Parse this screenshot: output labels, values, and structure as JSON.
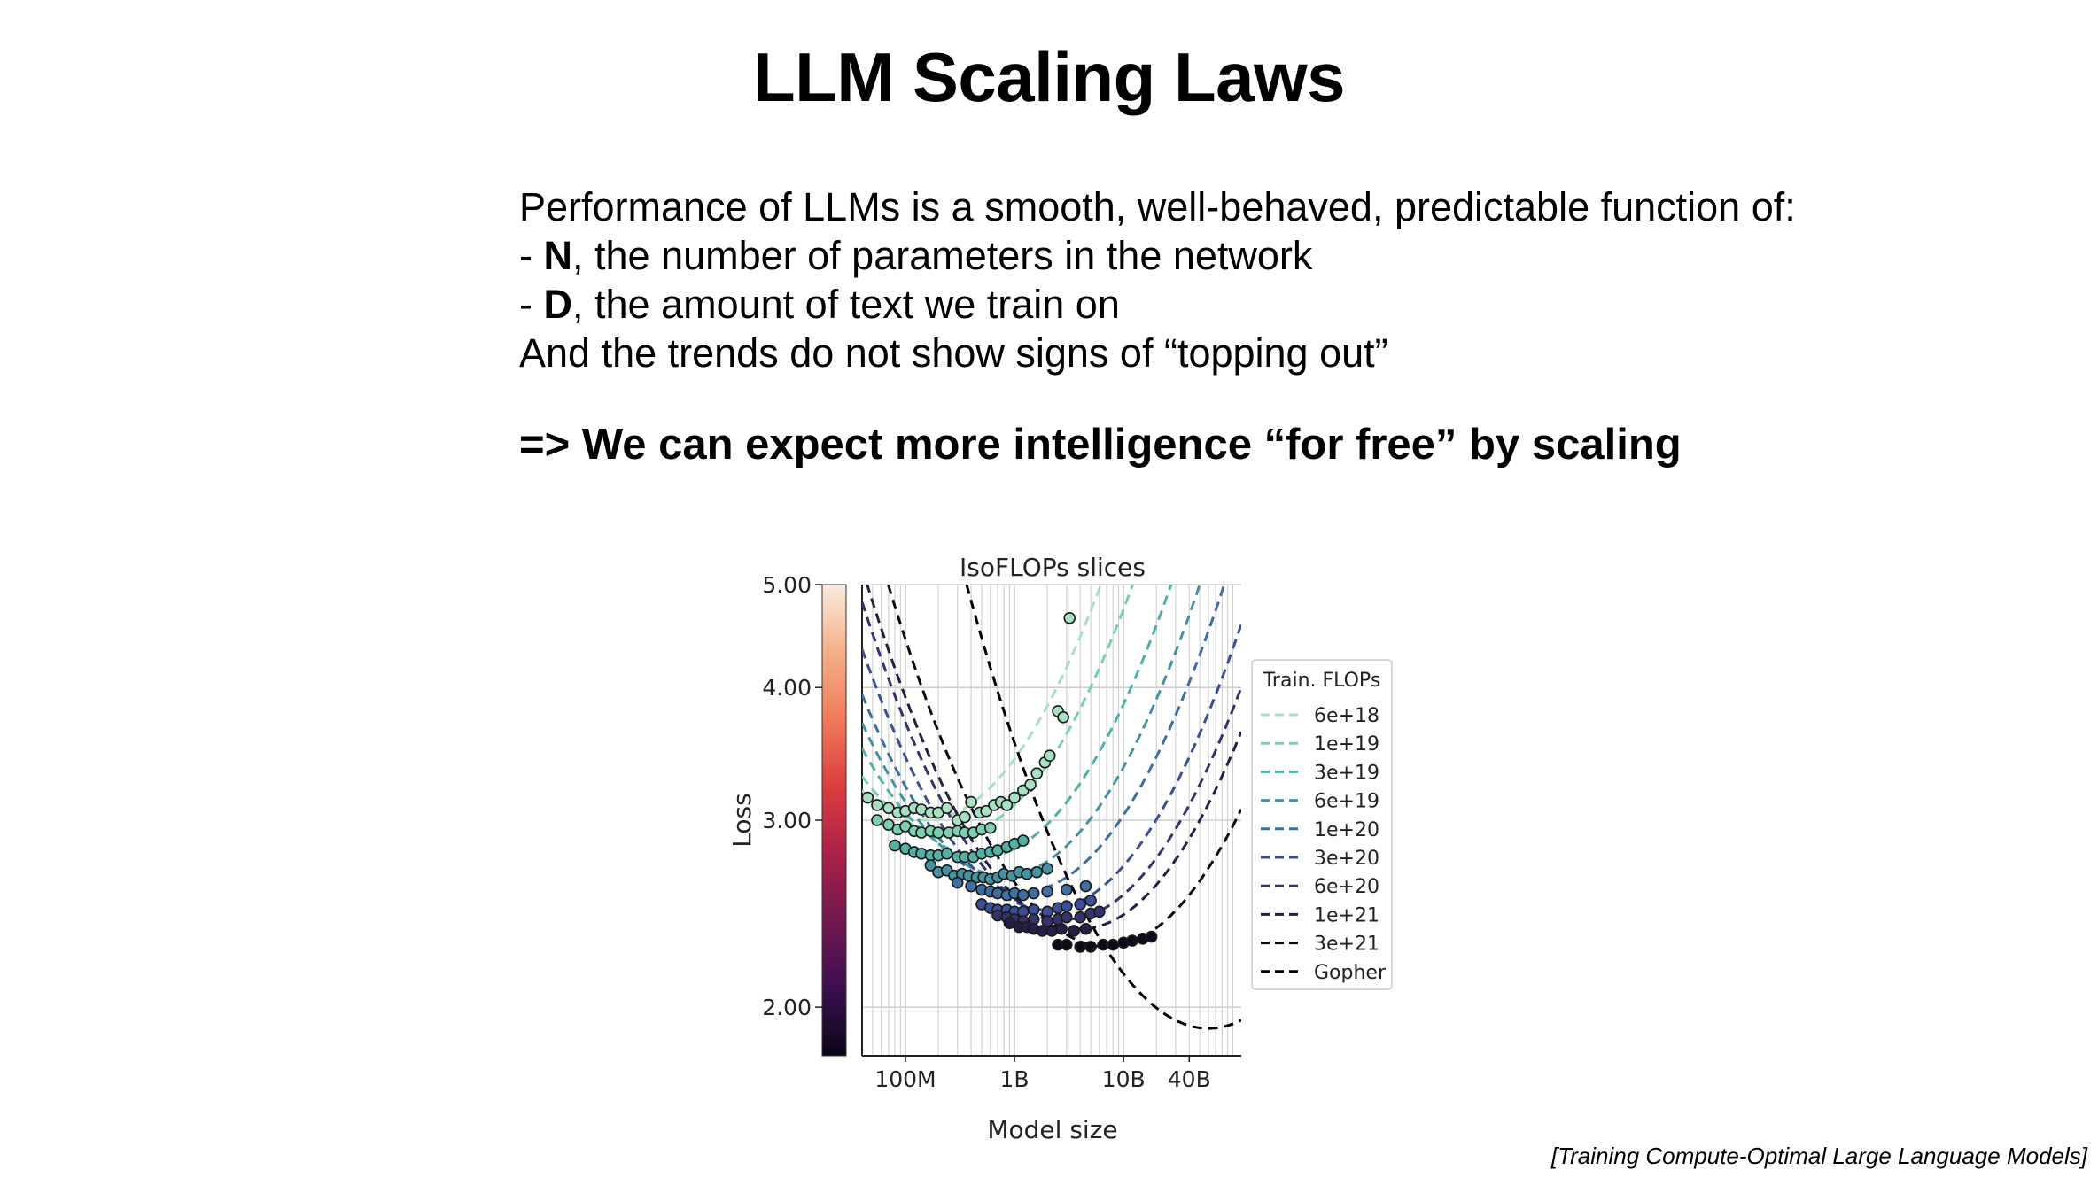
{
  "slide": {
    "title": "LLM Scaling Laws",
    "lines": [
      {
        "prefix": "",
        "bold": "",
        "rest": "Performance of LLMs is a smooth, well-behaved, predictable function of:"
      },
      {
        "prefix": "- ",
        "bold": "N",
        "rest": ", the number of parameters in the network"
      },
      {
        "prefix": "- ",
        "bold": "D",
        "rest": ", the amount of text we train on"
      },
      {
        "prefix": "",
        "bold": "",
        "rest": "And the trends do not show signs of “topping out”"
      }
    ],
    "conclusion": "=> We can expect more intelligence “for free” by scaling",
    "citation": "[Training Compute-Optimal Large Language Models]"
  },
  "chart_data": {
    "type": "line",
    "title": "IsoFLOPs slices",
    "xlabel": "Model size",
    "ylabel": "Loss",
    "x_scale": "log",
    "y_scale": "log",
    "xlim_params": [
      40000000,
      120000000000
    ],
    "ylim": [
      1.8,
      5.0
    ],
    "x_ticks": [
      {
        "label": "100M",
        "value": 100000000
      },
      {
        "label": "1B",
        "value": 1000000000
      },
      {
        "label": "10B",
        "value": 10000000000
      },
      {
        "label": "40B",
        "value": 40000000000
      }
    ],
    "y_ticks": [
      {
        "label": "5.00",
        "value": 5.0
      },
      {
        "label": "4.00",
        "value": 4.0
      },
      {
        "label": "3.00",
        "value": 3.0
      },
      {
        "label": "2.00",
        "value": 2.0
      }
    ],
    "grid": true,
    "colorbar": {
      "colors": [
        "#0b0617",
        "#3b0f4f",
        "#71174f",
        "#ab2148",
        "#dd3c3f",
        "#f27a5a",
        "#f5b088",
        "#faebdd"
      ]
    },
    "legend": {
      "title": "Train. FLOPs",
      "position": "right"
    },
    "series": [
      {
        "name": "6e+18",
        "color": "#a8e0c4",
        "vertex_params": 150000000,
        "min_loss": 3.0,
        "curvature": 0.085,
        "points": [
          [
            45000000,
            3.15
          ],
          [
            55000000,
            3.1
          ],
          [
            70000000,
            3.08
          ],
          [
            85000000,
            3.05
          ],
          [
            100000000,
            3.06
          ],
          [
            120000000,
            3.08
          ],
          [
            140000000,
            3.07
          ],
          [
            170000000,
            3.05
          ],
          [
            200000000,
            3.05
          ],
          [
            240000000,
            3.08
          ],
          [
            300000000,
            3.0
          ],
          [
            350000000,
            3.02
          ],
          [
            400000000,
            3.12
          ],
          [
            480000000,
            3.05
          ],
          [
            550000000,
            3.06
          ],
          [
            650000000,
            3.1
          ],
          [
            750000000,
            3.12
          ],
          [
            850000000,
            3.1
          ],
          [
            1000000000,
            3.15
          ],
          [
            1200000000,
            3.2
          ],
          [
            1400000000,
            3.24
          ],
          [
            1600000000,
            3.32
          ],
          [
            1900000000,
            3.4
          ],
          [
            2100000000,
            3.45
          ],
          [
            2500000000,
            3.8
          ],
          [
            2800000000,
            3.75
          ],
          [
            3200000000,
            4.65
          ]
        ]
      },
      {
        "name": "1e+19",
        "color": "#7ccfb0",
        "vertex_params": 260000000,
        "min_loss": 2.9,
        "curvature": 0.085,
        "points": [
          [
            55000000,
            3.0
          ],
          [
            70000000,
            2.97
          ],
          [
            85000000,
            2.94
          ],
          [
            100000000,
            2.96
          ],
          [
            120000000,
            2.93
          ],
          [
            140000000,
            2.92
          ],
          [
            170000000,
            2.93
          ],
          [
            200000000,
            2.92
          ],
          [
            250000000,
            2.92
          ],
          [
            300000000,
            2.93
          ],
          [
            350000000,
            2.92
          ],
          [
            420000000,
            2.92
          ],
          [
            500000000,
            2.94
          ],
          [
            600000000,
            2.95
          ]
        ]
      },
      {
        "name": "3e+19",
        "color": "#52b1a4",
        "vertex_params": 500000000,
        "min_loss": 2.77,
        "curvature": 0.085,
        "points": [
          [
            80000000,
            2.84
          ],
          [
            100000000,
            2.82
          ],
          [
            120000000,
            2.8
          ],
          [
            140000000,
            2.79
          ],
          [
            170000000,
            2.78
          ],
          [
            200000000,
            2.78
          ],
          [
            240000000,
            2.79
          ],
          [
            300000000,
            2.77
          ],
          [
            350000000,
            2.77
          ],
          [
            420000000,
            2.77
          ],
          [
            500000000,
            2.79
          ],
          [
            600000000,
            2.8
          ],
          [
            700000000,
            2.81
          ],
          [
            850000000,
            2.83
          ],
          [
            1000000000,
            2.85
          ],
          [
            1200000000,
            2.87
          ]
        ]
      },
      {
        "name": "6e+19",
        "color": "#4792a0",
        "vertex_params": 800000000,
        "min_loss": 2.66,
        "curvature": 0.085,
        "points": [
          [
            170000000,
            2.72
          ],
          [
            200000000,
            2.68
          ],
          [
            240000000,
            2.69
          ],
          [
            280000000,
            2.66
          ],
          [
            330000000,
            2.67
          ],
          [
            380000000,
            2.66
          ],
          [
            450000000,
            2.65
          ],
          [
            520000000,
            2.65
          ],
          [
            600000000,
            2.64
          ],
          [
            700000000,
            2.65
          ],
          [
            800000000,
            2.67
          ],
          [
            950000000,
            2.66
          ],
          [
            1100000000,
            2.68
          ],
          [
            1300000000,
            2.67
          ],
          [
            1600000000,
            2.68
          ],
          [
            2000000000,
            2.7
          ]
        ]
      },
      {
        "name": "1e+20",
        "color": "#3f6fa0",
        "vertex_params": 1200000000,
        "min_loss": 2.57,
        "curvature": 0.085,
        "points": [
          [
            300000000,
            2.62
          ],
          [
            400000000,
            2.6
          ],
          [
            500000000,
            2.58
          ],
          [
            600000000,
            2.57
          ],
          [
            700000000,
            2.56
          ],
          [
            850000000,
            2.55
          ],
          [
            1000000000,
            2.56
          ],
          [
            1200000000,
            2.55
          ],
          [
            1500000000,
            2.56
          ],
          [
            2000000000,
            2.57
          ],
          [
            3000000000,
            2.58
          ],
          [
            4500000000,
            2.6
          ]
        ]
      },
      {
        "name": "3e+20",
        "color": "#3b4e96",
        "vertex_params": 2000000000,
        "min_loss": 2.47,
        "curvature": 0.085,
        "points": [
          [
            500000000,
            2.5
          ],
          [
            600000000,
            2.48
          ],
          [
            700000000,
            2.47
          ],
          [
            850000000,
            2.47
          ],
          [
            1000000000,
            2.46
          ],
          [
            1200000000,
            2.46
          ],
          [
            1500000000,
            2.47
          ],
          [
            2000000000,
            2.46
          ],
          [
            2500000000,
            2.48
          ],
          [
            3000000000,
            2.49
          ],
          [
            4000000000,
            2.5
          ],
          [
            5000000000,
            2.52
          ]
        ]
      },
      {
        "name": "6e+20",
        "color": "#35336d",
        "vertex_params": 3000000000,
        "min_loss": 2.42,
        "curvature": 0.085,
        "points": [
          [
            700000000,
            2.44
          ],
          [
            850000000,
            2.43
          ],
          [
            1000000000,
            2.42
          ],
          [
            1200000000,
            2.41
          ],
          [
            1500000000,
            2.42
          ],
          [
            2000000000,
            2.41
          ],
          [
            2500000000,
            2.42
          ],
          [
            3000000000,
            2.43
          ],
          [
            4000000000,
            2.43
          ],
          [
            5000000000,
            2.45
          ],
          [
            6000000000,
            2.46
          ]
        ]
      },
      {
        "name": "1e+21",
        "color": "#241f44",
        "vertex_params": 4000000000,
        "min_loss": 2.37,
        "curvature": 0.085,
        "points": [
          [
            900000000,
            2.4
          ],
          [
            1100000000,
            2.38
          ],
          [
            1300000000,
            2.38
          ],
          [
            1500000000,
            2.37
          ],
          [
            1800000000,
            2.36
          ],
          [
            2200000000,
            2.36
          ],
          [
            2700000000,
            2.37
          ],
          [
            3500000000,
            2.36
          ],
          [
            4500000000,
            2.37
          ]
        ]
      },
      {
        "name": "3e+21",
        "color": "#0f0a1a",
        "vertex_params": 7000000000,
        "min_loss": 2.28,
        "curvature": 0.085,
        "points": [
          [
            2500000000,
            2.29
          ],
          [
            3000000000,
            2.29
          ],
          [
            4000000000,
            2.28
          ],
          [
            5000000000,
            2.28
          ],
          [
            6500000000,
            2.29
          ],
          [
            8000000000,
            2.29
          ],
          [
            10000000000,
            2.3
          ],
          [
            12000000000,
            2.31
          ],
          [
            15000000000,
            2.32
          ],
          [
            18000000000,
            2.33
          ]
        ]
      },
      {
        "name": "Gopher",
        "color": "#000000",
        "vertex_params": 60000000000,
        "min_loss": 1.91,
        "curvature": 0.085,
        "points": []
      }
    ]
  }
}
